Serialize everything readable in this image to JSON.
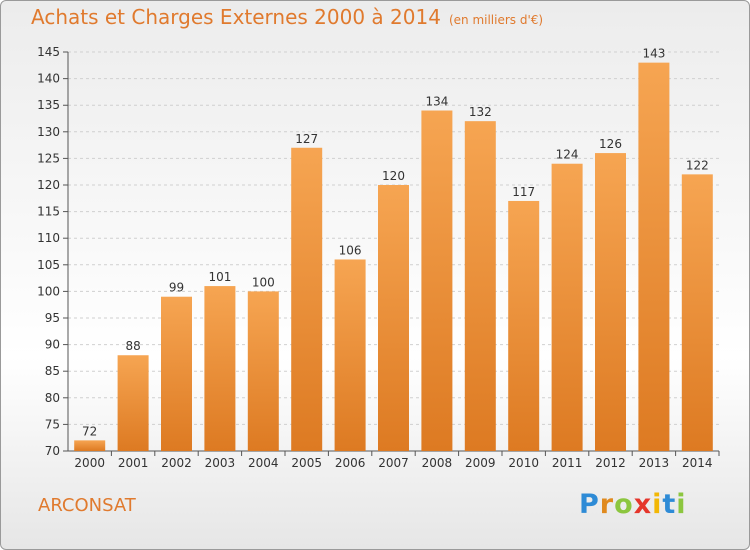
{
  "header": {
    "title": "Achats et Charges Externes 2000 à 2014",
    "unit": "(en milliers d'€)"
  },
  "footer": {
    "commune": "ARCONSAT",
    "logo": [
      "P",
      "r",
      "o",
      "x",
      "i",
      "t",
      "i"
    ],
    "logo_colors": [
      "#2e8bd6",
      "#e08a1e",
      "#8cc63f",
      "#e5352b",
      "#f2b705",
      "#2e8bd6",
      "#8cc63f"
    ]
  },
  "colors": {
    "accent": "#e07a2e",
    "bar_top": "#f6a552",
    "bar_bottom": "#dd7a22",
    "grid": "#d0d0d0"
  },
  "chart_data": {
    "type": "bar",
    "categories": [
      "2000",
      "2001",
      "2002",
      "2003",
      "2004",
      "2005",
      "2006",
      "2007",
      "2008",
      "2009",
      "2010",
      "2011",
      "2012",
      "2013",
      "2014"
    ],
    "values": [
      72,
      88,
      99,
      101,
      100,
      127,
      106,
      120,
      134,
      132,
      117,
      124,
      126,
      143,
      122
    ],
    "ylim": [
      70,
      145
    ],
    "yticks": [
      70,
      75,
      80,
      85,
      90,
      95,
      100,
      105,
      110,
      115,
      120,
      125,
      130,
      135,
      140,
      145
    ],
    "grid": "horizontal-dashed",
    "legend": "none"
  }
}
